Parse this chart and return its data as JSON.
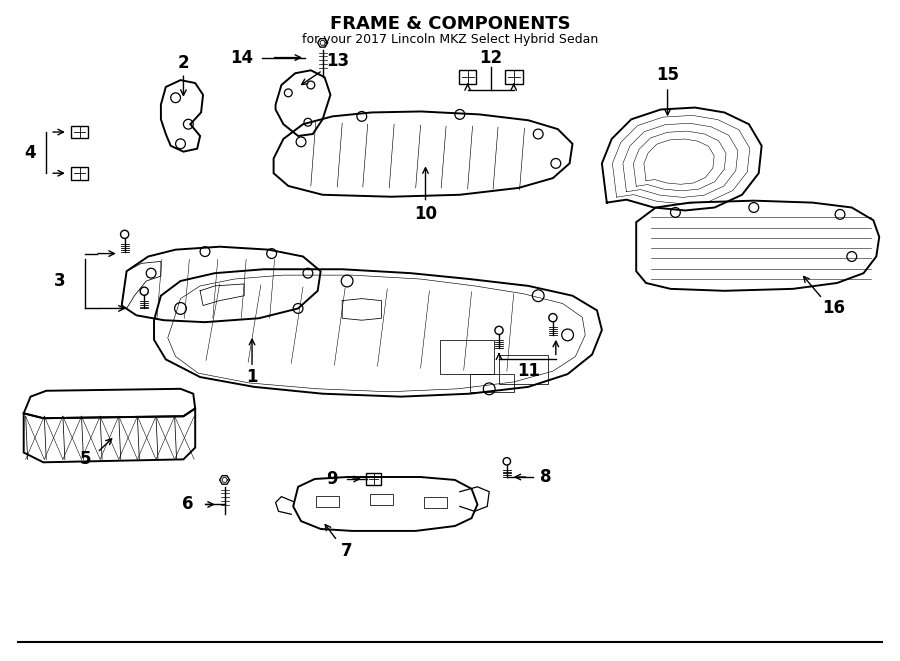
{
  "title": "FRAME & COMPONENTS",
  "subtitle": "for your 2017 Lincoln MKZ Select Hybrid Sedan",
  "bg_color": "#ffffff",
  "line_color": "#000000",
  "text_color": "#000000",
  "fig_width": 9.0,
  "fig_height": 6.61
}
